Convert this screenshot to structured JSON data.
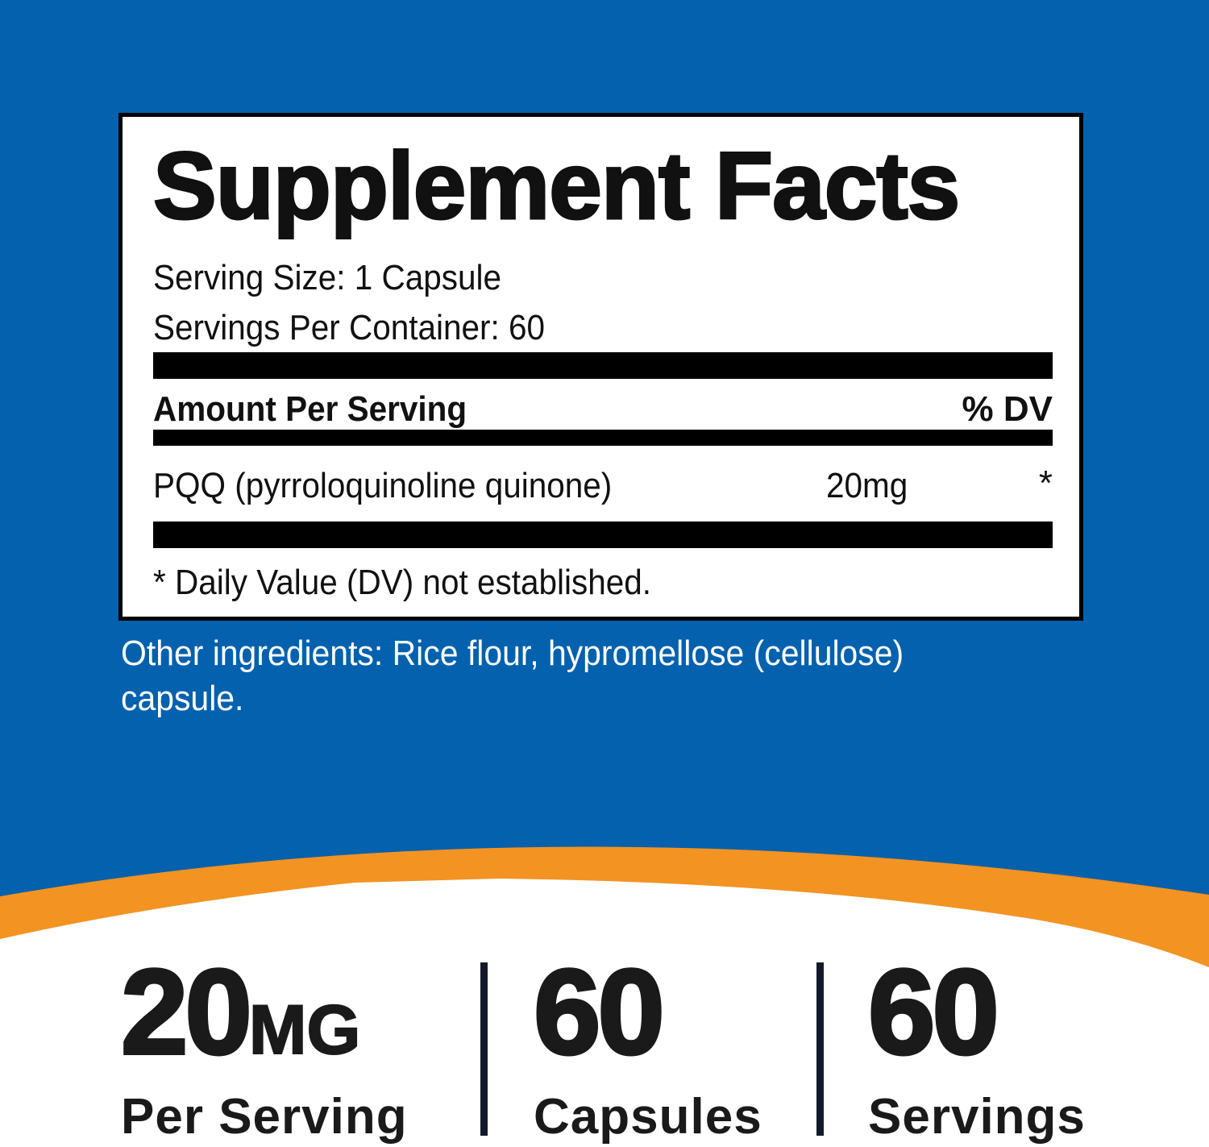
{
  "colors": {
    "background": "#0361ad",
    "accent": "#f39322",
    "text": "#1a1a1a"
  },
  "facts": {
    "title": "Supplement Facts",
    "serving_size": "Serving Size: 1 Capsule",
    "servings_per_container": "Servings Per Container: 60",
    "amount_header": "Amount Per Serving",
    "dv_header": "% DV",
    "ingredient": {
      "name": "PQQ (pyrroloquinoline quinone)",
      "amount": "20mg",
      "dv": "*"
    },
    "footnote": "* Daily Value (DV) not established."
  },
  "other_ingredients": [
    "Other ingredients: Rice flour, hypromellose (cellulose)",
    "capsule."
  ],
  "stats": [
    {
      "value": "20",
      "unit": "MG",
      "label": "Per Serving"
    },
    {
      "value": "60",
      "label": "Capsules"
    },
    {
      "value": "60",
      "label": "Servings"
    }
  ]
}
